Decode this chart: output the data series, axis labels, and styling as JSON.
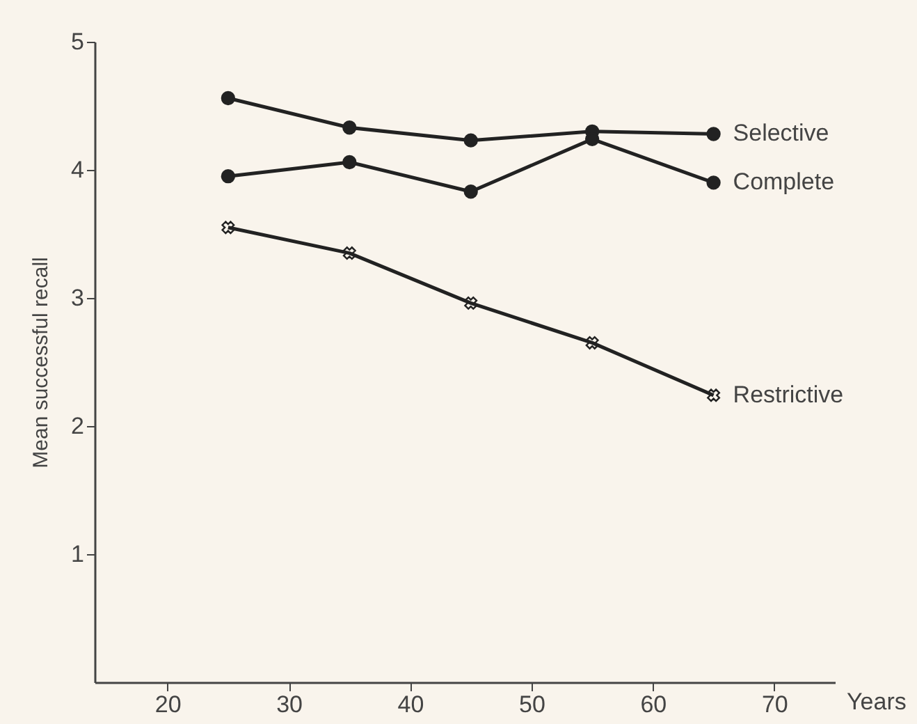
{
  "chart_data": {
    "type": "line",
    "xlabel": "Years",
    "ylabel": "Mean successful recall",
    "xlim": [
      14,
      75
    ],
    "xticks": [
      20,
      30,
      40,
      50,
      60,
      70
    ],
    "ylim": [
      0,
      5
    ],
    "yticks": [
      1,
      2,
      3,
      4,
      5
    ],
    "grid": false,
    "legend": false,
    "line_style": "solid",
    "x": [
      25,
      35,
      45,
      55,
      65
    ],
    "series": [
      {
        "name": "Selective",
        "color": "#222222",
        "marker": "circle",
        "values": [
          4.56,
          4.33,
          4.23,
          4.3,
          4.28
        ]
      },
      {
        "name": "Complete",
        "color": "#222222",
        "marker": "circle",
        "values": [
          3.95,
          4.06,
          3.83,
          4.24,
          3.9
        ]
      },
      {
        "name": "Restrictive",
        "color": "#222222",
        "marker": "cross",
        "values": [
          3.55,
          3.35,
          2.96,
          2.65,
          2.24
        ]
      }
    ]
  }
}
